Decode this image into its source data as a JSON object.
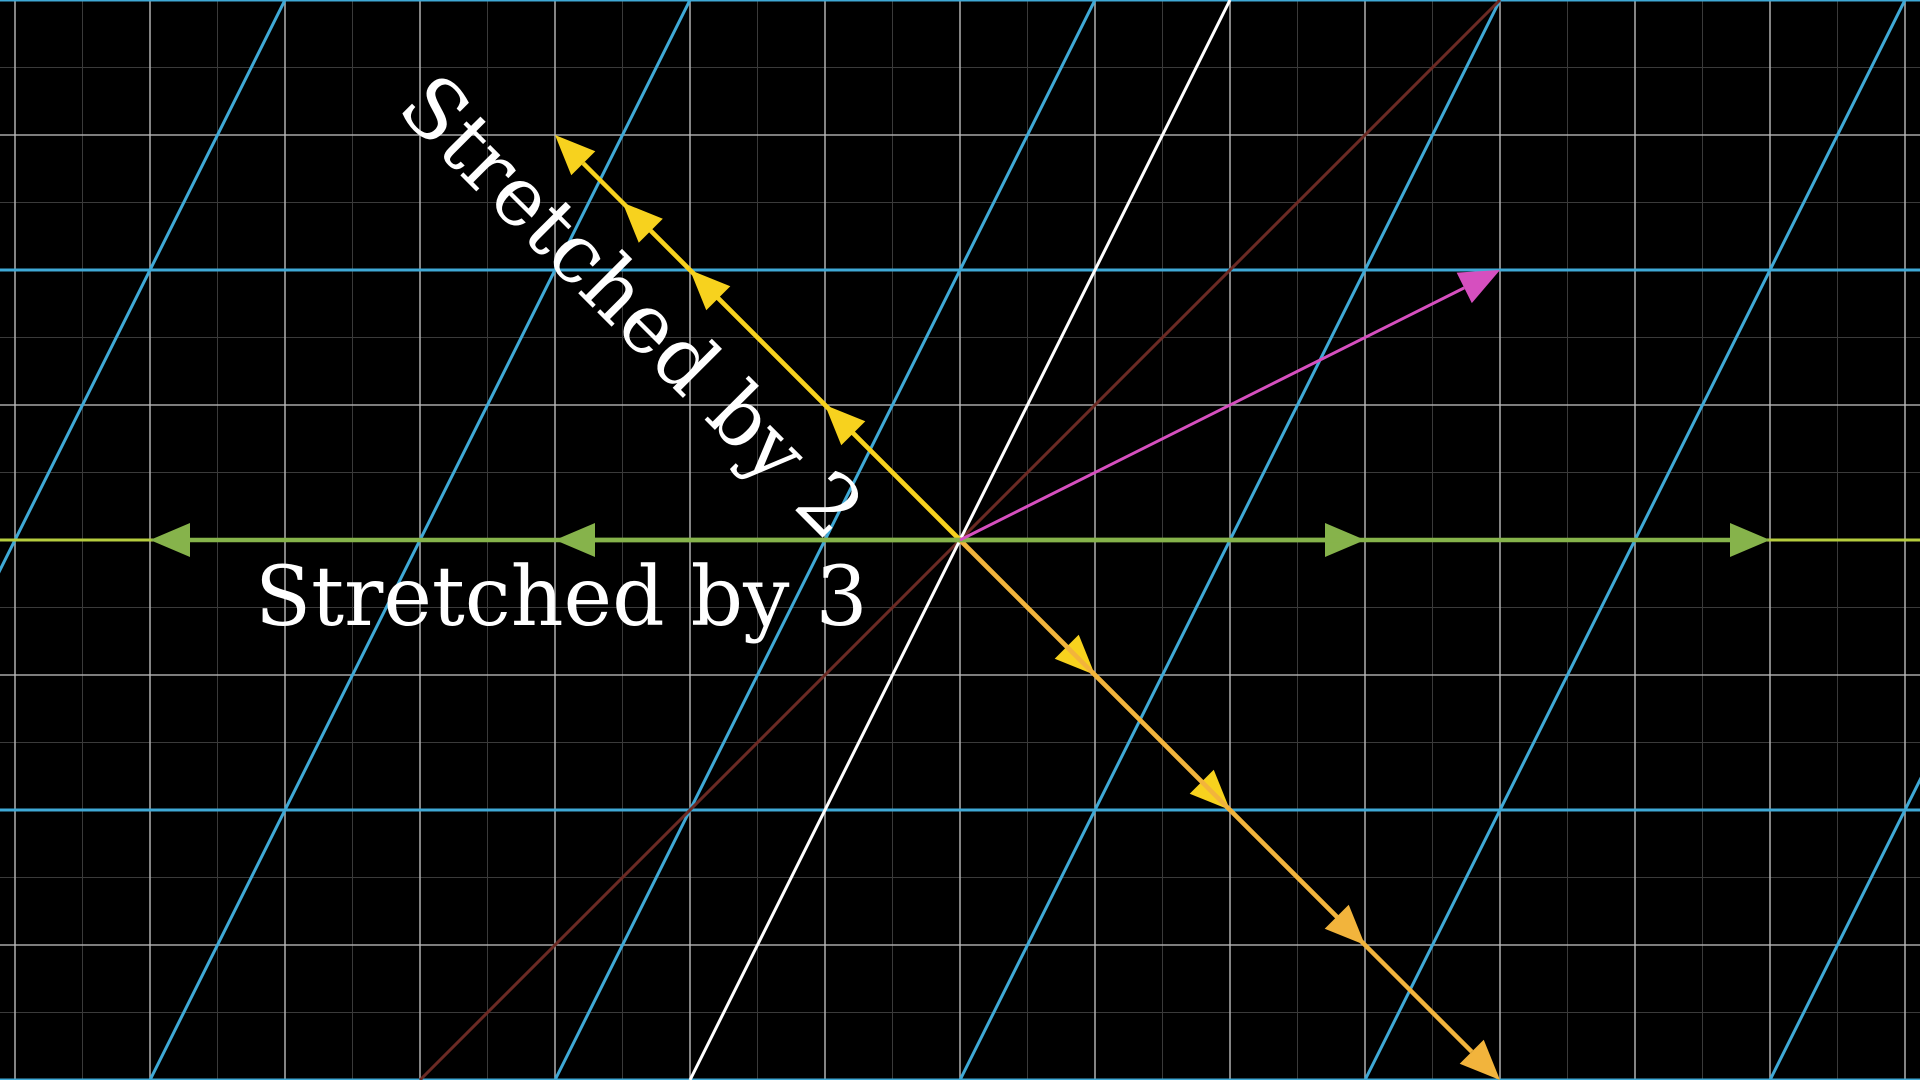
{
  "labels": {
    "stretched_by_2": "Stretched by 2",
    "stretched_by_3": "Stretched by 3"
  },
  "colors": {
    "background": "#000000",
    "fine_grid": "#3a3a3a",
    "main_grid": "#bdbdbd",
    "transformed_grid": "#3fa9d6",
    "basis_i_line": "#b6cc3e",
    "basis_j_line": "#ffffff",
    "diagonal_line": "#6b2a24",
    "eigen_x_vectors": "#86b34b",
    "eigen_diag_vectors": "#f7d21e",
    "eigen_diag_vectors_far": "#f2b43c",
    "general_vector": "#d64fbf"
  },
  "icons": {
    "arrowhead": "triangle-arrowhead-icon"
  }
}
